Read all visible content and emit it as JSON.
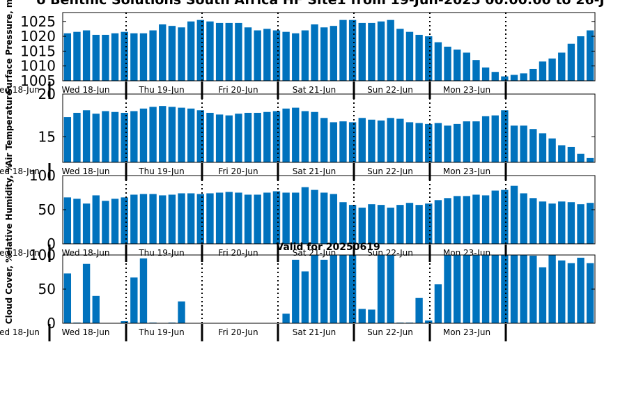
{
  "figure": {
    "title": "o Benthic Solutions South Africa HF Site1 from 19-Jun-2025 00:00:00 to 26-J",
    "panel4_title": "Valid for 20250619"
  },
  "colors": {
    "bar": "#0072bd",
    "axis": "#000000",
    "background": "#ffffff"
  },
  "day_labels": [
    "ed 18-Jun",
    "Wed 18-Jun",
    "Thu 19-Jun",
    "Fri 20-Jun",
    "Sat 21-Jun",
    "Sun 22-Jun",
    "Mon 23-Jun"
  ],
  "chart_data": [
    {
      "type": "bar",
      "ylabel": "Surface Pressure, m",
      "ylim": [
        1005,
        1028
      ],
      "yticks": [
        1005,
        1010,
        1015,
        1020,
        1025
      ],
      "values": [
        1021,
        1021.5,
        1022,
        1020.5,
        1020.5,
        1021,
        1021.5,
        1021,
        1021,
        1022,
        1024,
        1023.5,
        1023,
        1025,
        1025.5,
        1025,
        1024.5,
        1024.5,
        1024.5,
        1023,
        1022,
        1022.5,
        1022,
        1021.5,
        1021,
        1022,
        1024,
        1023,
        1023.5,
        1025.5,
        1025.5,
        1024.5,
        1024.5,
        1025,
        1025.5,
        1022.5,
        1021.5,
        1020.5,
        1020,
        1018,
        1016.5,
        1015.5,
        1014.5,
        1012,
        1009.5,
        1008,
        1006.5,
        1007,
        1007.5,
        1009,
        1011.5,
        1012.5,
        1014.5,
        1017.5,
        1020,
        1022
      ]
    },
    {
      "type": "bar",
      "ylabel": "Air Temperature",
      "ylim": [
        12,
        20
      ],
      "yticks": [
        15,
        20
      ],
      "values": [
        17.3,
        17.8,
        18.1,
        17.7,
        18.0,
        17.9,
        17.8,
        18.0,
        18.3,
        18.5,
        18.6,
        18.5,
        18.4,
        18.3,
        18.1,
        17.8,
        17.6,
        17.5,
        17.7,
        17.8,
        17.8,
        17.9,
        18.0,
        18.3,
        18.4,
        18.0,
        17.9,
        17.2,
        16.7,
        16.8,
        16.7,
        17.2,
        17.0,
        16.9,
        17.2,
        17.1,
        16.7,
        16.6,
        16.5,
        16.6,
        16.3,
        16.5,
        16.8,
        16.8,
        17.4,
        17.5,
        18.1,
        16.3,
        16.3,
        15.9,
        15.4,
        14.8,
        14.0,
        13.8,
        13.0,
        12.5
      ]
    },
    {
      "type": "bar",
      "ylabel": "elative Humidity, %",
      "ylim": [
        0,
        100
      ],
      "yticks": [
        0,
        50,
        100
      ],
      "values": [
        68,
        66,
        59,
        71,
        63,
        66,
        68,
        72,
        73,
        73,
        71,
        72,
        74,
        74,
        73,
        74,
        75,
        76,
        75,
        72,
        72,
        75,
        77,
        75,
        75,
        83,
        79,
        75,
        73,
        61,
        57,
        53,
        58,
        57,
        53,
        57,
        60,
        57,
        59,
        64,
        67,
        70,
        70,
        72,
        71,
        78,
        79,
        85,
        74,
        67,
        62,
        59,
        62,
        61,
        58,
        60
      ]
    },
    {
      "type": "bar",
      "title": "Valid for 20250619",
      "ylabel": "Cloud Cover, %",
      "ylim": [
        0,
        100
      ],
      "yticks": [
        0,
        50,
        100
      ],
      "values": [
        73,
        1,
        87,
        40,
        0,
        0,
        3,
        67,
        95,
        1,
        0,
        1,
        32,
        0,
        0,
        0,
        0,
        0,
        0,
        0,
        0,
        0,
        0,
        14,
        93,
        76,
        100,
        93,
        100,
        100,
        100,
        21,
        20,
        100,
        100,
        1,
        1,
        37,
        4,
        57,
        100,
        100,
        100,
        100,
        100,
        100,
        100,
        100,
        100,
        99,
        82,
        100,
        92,
        88,
        96,
        88
      ]
    }
  ]
}
